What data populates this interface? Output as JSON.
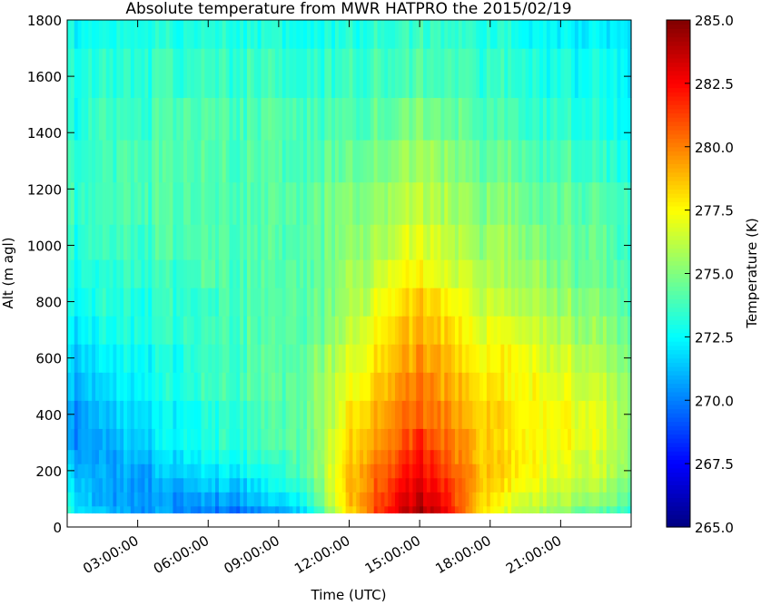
{
  "chart_data": {
    "type": "heatmap",
    "title": "Absolute temperature from MWR HATPRO the 2015/02/19",
    "xlabel": "Time (UTC)",
    "ylabel": "Alt (m agl)",
    "colorbar_label": "Temperature (K)",
    "colormap": "jet",
    "xlim_hours": [
      0,
      24
    ],
    "ylim": [
      0,
      1800
    ],
    "clim": [
      265.0,
      285.0
    ],
    "x_ticks": [
      3,
      6,
      9,
      12,
      15,
      18,
      21
    ],
    "x_tick_labels": [
      "03:00:00",
      "06:00:00",
      "09:00:00",
      "12:00:00",
      "15:00:00",
      "18:00:00",
      "21:00:00"
    ],
    "y_ticks": [
      0,
      200,
      400,
      600,
      800,
      1000,
      1200,
      1400,
      1600,
      1800
    ],
    "y_tick_labels": [
      "0",
      "200",
      "400",
      "600",
      "800",
      "1000",
      "1200",
      "1400",
      "1600",
      "1800"
    ],
    "colorbar_ticks": [
      265.0,
      267.5,
      270.0,
      272.5,
      275.0,
      277.5,
      280.0,
      282.5,
      285.0
    ],
    "colorbar_tick_labels": [
      "265.0",
      "267.5",
      "270.0",
      "272.5",
      "275.0",
      "277.5",
      "280.0",
      "282.5",
      "285.0"
    ],
    "altitudes": [
      50,
      100,
      150,
      200,
      250,
      300,
      400,
      500,
      600,
      700,
      800,
      900,
      1000,
      1150,
      1300,
      1450,
      1600,
      1800
    ],
    "time_hours": [
      0,
      1.5,
      3,
      4.5,
      6,
      7.5,
      9,
      10.5,
      12,
      13,
      14,
      15,
      16,
      17,
      18,
      19,
      20,
      21,
      22,
      24
    ],
    "temperatures": [
      [
        273.0,
        271.0,
        270.5,
        270.5,
        270.0,
        270.0,
        270.5,
        273.0,
        278.0,
        281.0,
        283.0,
        284.0,
        283.0,
        280.0,
        277.5,
        276.5,
        276.0,
        275.5,
        274.5,
        273.5
      ],
      [
        272.5,
        270.5,
        270.5,
        270.5,
        270.5,
        271.0,
        271.5,
        274.0,
        278.5,
        281.0,
        282.5,
        283.5,
        282.5,
        280.0,
        278.0,
        277.0,
        276.5,
        276.0,
        275.5,
        274.5
      ],
      [
        272.0,
        270.5,
        270.5,
        271.0,
        271.5,
        271.5,
        272.5,
        274.5,
        278.5,
        280.5,
        282.0,
        283.0,
        282.0,
        280.0,
        278.5,
        277.5,
        277.0,
        276.5,
        276.0,
        275.0
      ],
      [
        271.5,
        270.5,
        270.5,
        271.5,
        272.0,
        272.5,
        273.0,
        275.0,
        278.5,
        280.5,
        281.5,
        282.5,
        281.5,
        280.0,
        278.5,
        278.0,
        277.5,
        277.0,
        276.5,
        275.5
      ],
      [
        271.0,
        270.5,
        271.0,
        272.0,
        272.5,
        273.0,
        273.5,
        275.0,
        278.0,
        280.0,
        281.0,
        282.0,
        281.0,
        279.5,
        278.5,
        278.0,
        277.5,
        277.0,
        276.5,
        275.5
      ],
      [
        270.5,
        270.5,
        271.5,
        272.5,
        273.0,
        273.5,
        274.0,
        275.0,
        278.0,
        279.5,
        280.5,
        281.5,
        280.5,
        279.5,
        278.5,
        278.0,
        277.5,
        277.5,
        277.0,
        275.5
      ],
      [
        270.5,
        271.0,
        272.0,
        272.5,
        273.0,
        273.5,
        274.0,
        275.0,
        277.5,
        279.0,
        280.0,
        280.5,
        280.0,
        279.0,
        278.5,
        278.0,
        277.5,
        277.5,
        277.0,
        275.5
      ],
      [
        271.0,
        271.5,
        272.5,
        273.0,
        273.5,
        274.0,
        274.0,
        275.0,
        277.0,
        278.5,
        279.5,
        280.0,
        279.5,
        278.5,
        278.0,
        277.5,
        277.5,
        277.0,
        276.5,
        275.5
      ],
      [
        271.5,
        272.0,
        272.5,
        273.0,
        273.5,
        274.0,
        274.0,
        275.0,
        276.5,
        278.0,
        279.0,
        279.5,
        279.0,
        278.0,
        277.5,
        277.5,
        277.0,
        276.5,
        276.0,
        275.0
      ],
      [
        272.0,
        272.5,
        273.0,
        273.5,
        273.5,
        274.0,
        274.0,
        274.5,
        276.0,
        277.5,
        278.5,
        279.0,
        278.5,
        277.5,
        277.0,
        277.0,
        276.5,
        276.0,
        275.5,
        274.5
      ],
      [
        272.5,
        273.0,
        273.0,
        273.5,
        273.5,
        274.0,
        274.0,
        274.5,
        275.5,
        277.0,
        278.0,
        278.5,
        278.0,
        277.0,
        276.5,
        276.0,
        276.0,
        275.5,
        275.0,
        274.0
      ],
      [
        273.0,
        273.0,
        273.5,
        273.5,
        274.0,
        274.0,
        274.0,
        274.5,
        275.5,
        276.5,
        277.5,
        277.5,
        277.0,
        276.5,
        276.0,
        275.5,
        275.5,
        275.0,
        274.5,
        274.0
      ],
      [
        273.0,
        273.5,
        273.5,
        274.0,
        274.0,
        274.0,
        274.0,
        274.5,
        275.0,
        276.0,
        276.5,
        277.0,
        276.5,
        276.0,
        275.5,
        275.5,
        275.0,
        274.5,
        274.5,
        273.5
      ],
      [
        273.5,
        273.5,
        274.0,
        274.0,
        274.0,
        274.0,
        274.0,
        274.5,
        275.0,
        275.5,
        276.0,
        276.0,
        276.0,
        275.5,
        275.0,
        275.0,
        274.5,
        274.5,
        274.0,
        273.5
      ],
      [
        273.5,
        273.5,
        274.0,
        274.0,
        274.0,
        274.0,
        274.0,
        274.0,
        274.5,
        275.0,
        275.5,
        275.5,
        275.5,
        275.0,
        274.5,
        274.5,
        274.0,
        274.0,
        273.5,
        273.0
      ],
      [
        273.0,
        273.5,
        273.5,
        274.0,
        274.0,
        274.0,
        274.0,
        274.0,
        274.0,
        274.5,
        274.5,
        275.0,
        274.5,
        274.5,
        274.0,
        274.0,
        273.5,
        273.5,
        273.0,
        272.5
      ],
      [
        273.0,
        273.0,
        273.5,
        273.5,
        273.5,
        273.5,
        273.5,
        273.5,
        273.5,
        274.0,
        274.0,
        274.0,
        274.0,
        274.0,
        273.5,
        273.5,
        273.0,
        273.0,
        272.5,
        272.5
      ],
      [
        272.5,
        272.5,
        273.0,
        273.0,
        273.0,
        273.0,
        273.0,
        273.0,
        273.0,
        273.5,
        273.5,
        273.5,
        273.5,
        273.5,
        273.0,
        273.0,
        272.5,
        272.5,
        272.0,
        272.0
      ]
    ]
  }
}
